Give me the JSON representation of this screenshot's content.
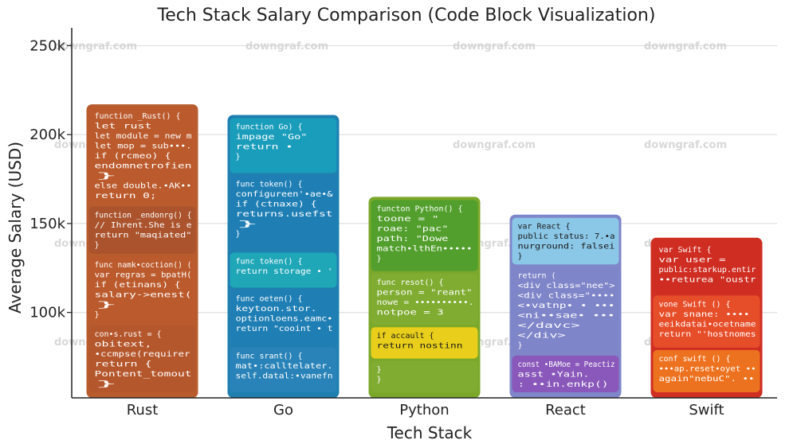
{
  "chart_data": {
    "type": "bar",
    "title": "Tech Stack Salary Comparison (Code Block Visualization)",
    "xlabel": "Tech Stack",
    "ylabel": "Average Salary (USD)",
    "ylim": [
      52000,
      260000
    ],
    "yticks": [
      100000,
      150000,
      200000,
      250000
    ],
    "ytick_labels": [
      "100k",
      "150k",
      "200k",
      "250k"
    ],
    "grid": true,
    "categories": [
      "Rust",
      "Go",
      "Python",
      "React",
      "Swift"
    ],
    "values": [
      217000,
      211000,
      165000,
      155000,
      142000
    ],
    "colors": [
      "#b85c2e",
      "#1f7fb0",
      "#7ba82a",
      "#7f86c9",
      "#cf2e22"
    ],
    "accent_colors": {
      "Rust": "#b4562f",
      "Go": "#1fa2b8",
      "Python": "#4e9e2e",
      "React": "#8ccde9",
      "Swift": "#e85d20"
    },
    "code_blocks": [
      [
        {
          "color": "#bb5a2c",
          "lines": [
            "function _Rust() {",
            "    let rust",
            "    let module = new m",
            "    let mop = sub•••.",
            "    if (rcmeo) {",
            "        endomnetrofien",
            "    }",
            "    else double.•AK••",
            "    return 0;"
          ]
        },
        {
          "color": "#a8532e",
          "lines": [
            "function _endonrg() {",
            "    // Ihrent.She is e",
            "    return \"maqiated\"",
            "}"
          ]
        },
        {
          "color": "#bb5a2c",
          "lines": [
            "func namk•coction() (",
            "    var regras = bpatH(",
            "    if (etinans) {",
            "        salary->enest(",
            "    }",
            "}"
          ]
        },
        {
          "color": "#b4572d",
          "lines": [
            "con•s.rust = {",
            "    obitext,",
            "    •ccmpse(requirer",
            "    return {",
            "        Pontent_tomout",
            "    }"
          ]
        }
      ],
      [
        {
          "color": "#1aa0bc",
          "lines": [
            "function Go) {",
            "    impage \"Go\"",
            "    return •",
            "}"
          ]
        },
        {
          "color": "#1f7fb5",
          "lines": [
            "func token() {",
            "    configureen'•ae•&",
            "    if (ctnaxe) {",
            "        returns.usefst",
            "    }",
            "}"
          ]
        },
        {
          "color": "#20aab8",
          "lines": [
            "func token() {",
            "    return storage • '"
          ]
        },
        {
          "color": "#1f7fb5",
          "lines": [
            "func oeten() {",
            "    keytoon.stor.",
            "    optionloens.eamc•",
            "    return \"cooint • t"
          ]
        },
        {
          "color": "#2a83b8",
          "lines": [
            "func srant() {",
            "    mat•:calltelater.",
            "    self.datal:•vanefn"
          ]
        }
      ],
      [
        {
          "color": "#4e9e2e",
          "lines": [
            "functon Python() {",
            "    toone = \"",
            "    roae: \"pac\"",
            "    path: \"Dowe",
            "    match•lthEn•••••",
            "}"
          ]
        },
        {
          "color": "#80ac33",
          "lines": [
            "func resot() {",
            "    person = \"reant\"",
            "    nowe = ••••••••••.",
            "    notpoe = 3"
          ]
        },
        {
          "color": "#f2d21a",
          "lines": [
            "if accault {",
            "    return nostinn"
          ]
        },
        {
          "color": "#80ac33",
          "lines": [
            "}",
            "}"
          ]
        }
      ],
      [
        {
          "color": "#8ccde9",
          "lines": [
            "var React {",
            "    public status: 7.•a",
            "    nurground: falsei",
            "}"
          ]
        },
        {
          "color": "#7f86c9",
          "lines": [
            "return (",
            "    <div class=\"nee\">",
            "      <div class=\"••••",
            "        <•vatnp• • •••",
            "        <ni••sae• •••",
            "      </davc>",
            "    </div>",
            "}"
          ]
        },
        {
          "color": "#8a55b8",
          "lines": [
            "const •BAMoe = Peactiz",
            "    asst •Yain.",
            "      : ••in.enkp()"
          ]
        }
      ],
      [
        {
          "color": "#cf2e22",
          "lines": [
            "var Swift {",
            "    var user =",
            "    public:starkup.entir",
            "        ••returea \"oustr"
          ]
        },
        {
          "color": "#e8502a",
          "lines": [
            "vone Swift () {",
            "    var snane: ••••",
            "    eeikdatai•ocetname",
            "    return \"'hostnomes"
          ]
        },
        {
          "color": "#f0781f",
          "lines": [
            "conf swift () {",
            "    •••ap.reset•oyet ••",
            "    again\"nebuC\". ••"
          ]
        }
      ]
    ]
  },
  "watermark": {
    "text": "downgraf.com"
  }
}
